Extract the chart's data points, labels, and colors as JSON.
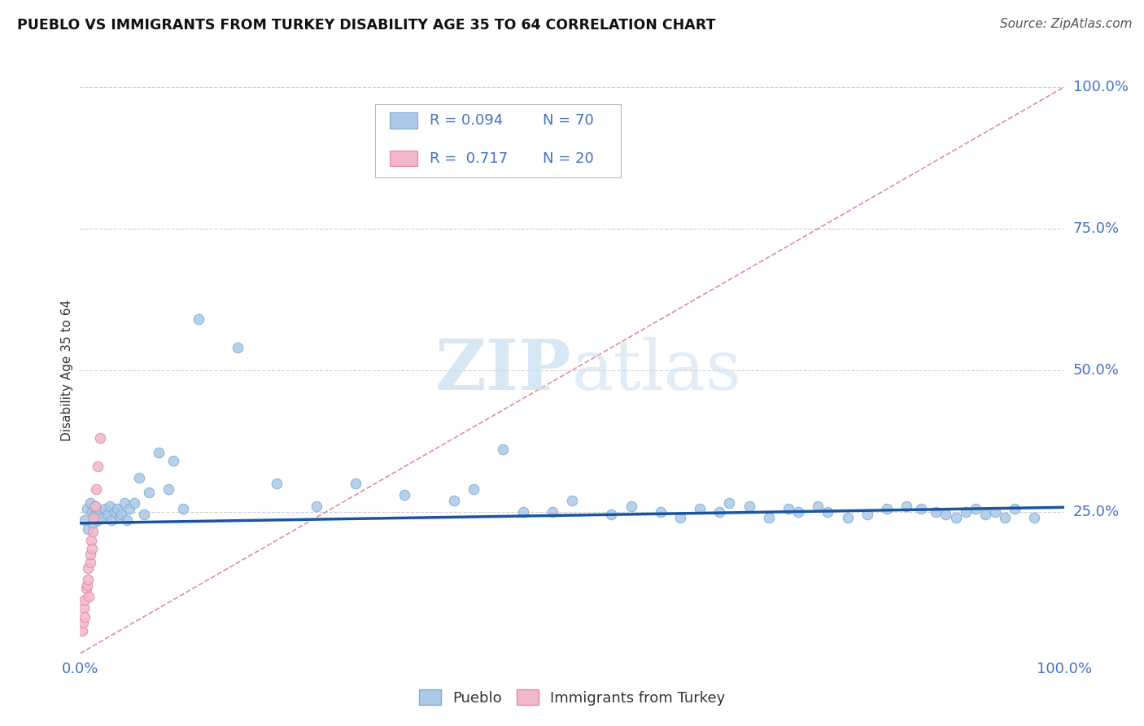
{
  "title": "PUEBLO VS IMMIGRANTS FROM TURKEY DISABILITY AGE 35 TO 64 CORRELATION CHART",
  "source": "Source: ZipAtlas.com",
  "ylabel": "Disability Age 35 to 64",
  "watermark_line1": "ZIP",
  "watermark_line2": "atlas",
  "pueblo_color": "#adc8e8",
  "pueblo_edge": "#7aaed4",
  "turkey_color": "#f2b8c8",
  "turkey_edge": "#e088a8",
  "trend_blue": "#1a55a0",
  "trend_pink": "#d06070",
  "grid_color": "#d0d0d0",
  "axis_color": "#4472c4",
  "title_color": "#111111",
  "source_color": "#555555",
  "legend_r1": "R = 0.094",
  "legend_n1": "N = 70",
  "legend_r2": "R =  0.717",
  "legend_n2": "N = 20",
  "label_pueblo": "Pueblo",
  "label_turkey": "Immigrants from Turkey",
  "xlim": [
    0.0,
    1.0
  ],
  "ylim": [
    0.0,
    1.0
  ],
  "ytick_vals": [
    0.25,
    0.5,
    0.75,
    1.0
  ],
  "ytick_labels": [
    "25.0%",
    "50.0%",
    "75.0%",
    "100.0%"
  ],
  "xtick_vals": [
    0.0,
    1.0
  ],
  "xtick_labels": [
    "0.0%",
    "100.0%"
  ],
  "pueblo_x": [
    0.005,
    0.007,
    0.008,
    0.01,
    0.012,
    0.013,
    0.015,
    0.015,
    0.018,
    0.02,
    0.022,
    0.025,
    0.028,
    0.03,
    0.032,
    0.035,
    0.038,
    0.04,
    0.042,
    0.045,
    0.048,
    0.05,
    0.055,
    0.06,
    0.065,
    0.07,
    0.08,
    0.09,
    0.095,
    0.105,
    0.12,
    0.16,
    0.2,
    0.24,
    0.28,
    0.33,
    0.38,
    0.4,
    0.43,
    0.45,
    0.48,
    0.5,
    0.54,
    0.56,
    0.59,
    0.61,
    0.63,
    0.65,
    0.66,
    0.68,
    0.7,
    0.72,
    0.73,
    0.75,
    0.76,
    0.78,
    0.8,
    0.82,
    0.84,
    0.855,
    0.87,
    0.88,
    0.89,
    0.9,
    0.91,
    0.92,
    0.93,
    0.94,
    0.95,
    0.97
  ],
  "pueblo_y": [
    0.235,
    0.255,
    0.22,
    0.265,
    0.25,
    0.23,
    0.245,
    0.26,
    0.235,
    0.25,
    0.24,
    0.255,
    0.245,
    0.26,
    0.235,
    0.25,
    0.255,
    0.24,
    0.245,
    0.265,
    0.235,
    0.255,
    0.265,
    0.31,
    0.245,
    0.285,
    0.355,
    0.29,
    0.34,
    0.255,
    0.59,
    0.54,
    0.3,
    0.26,
    0.3,
    0.28,
    0.27,
    0.29,
    0.36,
    0.25,
    0.25,
    0.27,
    0.245,
    0.26,
    0.25,
    0.24,
    0.255,
    0.25,
    0.265,
    0.26,
    0.24,
    0.255,
    0.25,
    0.26,
    0.25,
    0.24,
    0.245,
    0.255,
    0.26,
    0.255,
    0.25,
    0.245,
    0.24,
    0.25,
    0.255,
    0.245,
    0.25,
    0.24,
    0.255,
    0.24
  ],
  "turkey_x": [
    0.002,
    0.003,
    0.004,
    0.005,
    0.005,
    0.006,
    0.007,
    0.008,
    0.008,
    0.009,
    0.01,
    0.01,
    0.011,
    0.012,
    0.013,
    0.014,
    0.015,
    0.016,
    0.018,
    0.02
  ],
  "turkey_y": [
    0.04,
    0.055,
    0.08,
    0.065,
    0.095,
    0.115,
    0.12,
    0.13,
    0.15,
    0.1,
    0.16,
    0.175,
    0.2,
    0.185,
    0.215,
    0.24,
    0.26,
    0.29,
    0.33,
    0.38
  ],
  "trendline_blue_x0": 0.0,
  "trendline_blue_x1": 1.0,
  "trendline_blue_y0": 0.23,
  "trendline_blue_y1": 0.258,
  "trendline_pink_x0": 0.0,
  "trendline_pink_x1": 1.0,
  "trendline_pink_y0": 0.0,
  "trendline_pink_y1": 1.0
}
